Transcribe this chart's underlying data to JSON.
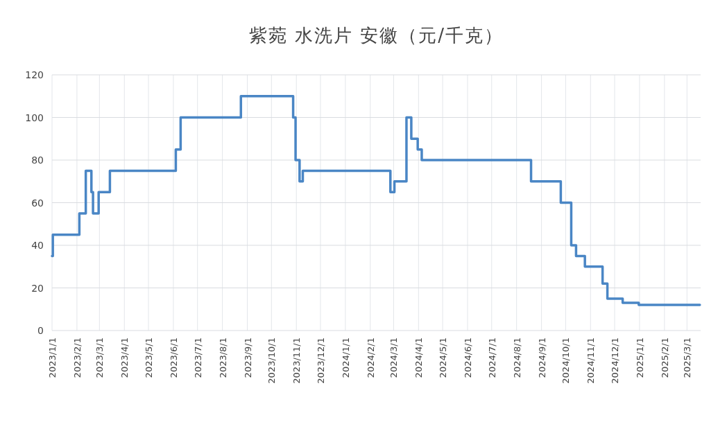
{
  "chart_data": {
    "type": "step",
    "title": "紫菀 水洗片 安徽（元/千克）",
    "color": "#4a86c5",
    "grid": true,
    "marker": "none",
    "line_style": "solid",
    "x": [
      "2023-01-01",
      "2023-01-02",
      "2023-02-04",
      "2023-02-12",
      "2023-02-19",
      "2023-02-21",
      "2023-02-28",
      "2023-03-14",
      "2023-06-04",
      "2023-06-10",
      "2023-08-24",
      "2023-10-28",
      "2023-10-31",
      "2023-11-05",
      "2023-11-09",
      "2024-02-26",
      "2024-03-02",
      "2024-03-17",
      "2024-03-23",
      "2024-03-31",
      "2024-04-05",
      "2024-08-19",
      "2024-09-25",
      "2024-10-08",
      "2024-10-14",
      "2024-10-25",
      "2024-11-16",
      "2024-11-22",
      "2024-12-11",
      "2024-12-31",
      "2025-03-17"
    ],
    "values": [
      35,
      45,
      55,
      75,
      65,
      55,
      65,
      75,
      85,
      100,
      110,
      100,
      80,
      70,
      75,
      65,
      70,
      100,
      90,
      85,
      80,
      70,
      60,
      40,
      35,
      30,
      22,
      15,
      13,
      12,
      12
    ],
    "xlim": [
      "2023-01-01",
      "2025-03-18"
    ],
    "xticks": [
      {
        "value": "2023-01-01",
        "label": "2023/1/1"
      },
      {
        "value": "2023-02-01",
        "label": "2023/2/1"
      },
      {
        "value": "2023-03-01",
        "label": "2023/3/1"
      },
      {
        "value": "2023-04-01",
        "label": "2023/4/1"
      },
      {
        "value": "2023-05-01",
        "label": "2023/5/1"
      },
      {
        "value": "2023-06-01",
        "label": "2023/6/1"
      },
      {
        "value": "2023-07-01",
        "label": "2023/7/1"
      },
      {
        "value": "2023-08-01",
        "label": "2023/8/1"
      },
      {
        "value": "2023-09-01",
        "label": "2023/9/1"
      },
      {
        "value": "2023-10-01",
        "label": "2023/10/1"
      },
      {
        "value": "2023-11-01",
        "label": "2023/11/1"
      },
      {
        "value": "2023-12-01",
        "label": "2023/12/1"
      },
      {
        "value": "2024-01-01",
        "label": "2024/1/1"
      },
      {
        "value": "2024-02-01",
        "label": "2024/2/1"
      },
      {
        "value": "2024-03-01",
        "label": "2024/3/1"
      },
      {
        "value": "2024-04-01",
        "label": "2024/4/1"
      },
      {
        "value": "2024-05-01",
        "label": "2024/5/1"
      },
      {
        "value": "2024-06-01",
        "label": "2024/6/1"
      },
      {
        "value": "2024-07-01",
        "label": "2024/7/1"
      },
      {
        "value": "2024-08-01",
        "label": "2024/8/1"
      },
      {
        "value": "2024-09-01",
        "label": "2024/9/1"
      },
      {
        "value": "2024-10-01",
        "label": "2024/10/1"
      },
      {
        "value": "2024-11-01",
        "label": "2024/11/1"
      },
      {
        "value": "2024-12-01",
        "label": "2024/12/1"
      },
      {
        "value": "2025-01-01",
        "label": "2025/1/1"
      },
      {
        "value": "2025-02-01",
        "label": "2025/2/1"
      },
      {
        "value": "2025-03-01",
        "label": "2025/3/1"
      }
    ],
    "ylim": [
      0,
      120
    ],
    "yticks": [
      0,
      20,
      40,
      60,
      80,
      100,
      120
    ]
  }
}
